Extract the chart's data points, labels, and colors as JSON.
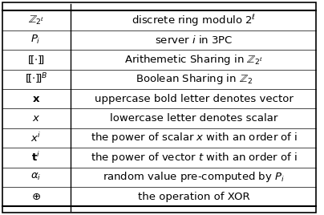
{
  "rows": [
    {
      "symbol": "$\\mathbb{Z}_{2^\\ell}$",
      "description": "discrete ring modulo $2^\\ell$"
    },
    {
      "symbol": "$P_i$",
      "description": "server $i$ in 3PC"
    },
    {
      "symbol": "$[\\![\\cdot]\\!]$",
      "description": "Arithemetic Sharing in $\\mathbb{Z}_{2^\\ell}$"
    },
    {
      "symbol": "$[\\![\\cdot]\\!]^B$",
      "description": "Boolean Sharing in $\\mathbb{Z}_2$"
    },
    {
      "symbol": "$\\mathbf{x}$",
      "description": "uppercase bold letter denotes vector"
    },
    {
      "symbol": "$x$",
      "description": "lowercase letter denotes scalar"
    },
    {
      "symbol": "$x^i$",
      "description": "the power of scalar $x$ with an order of i"
    },
    {
      "symbol": "$\\mathbf{t}^i$",
      "description": "the power of vector $t$ with an order of i"
    },
    {
      "symbol": "$\\alpha_i$",
      "description": "random value pre-computed by $P_i$"
    },
    {
      "symbol": "$\\oplus$",
      "description": "the operation of XOR"
    }
  ],
  "col_split": 0.22,
  "background": "#ffffff",
  "border_color": "#000000",
  "text_color": "#000000",
  "fontsize": 9.5
}
